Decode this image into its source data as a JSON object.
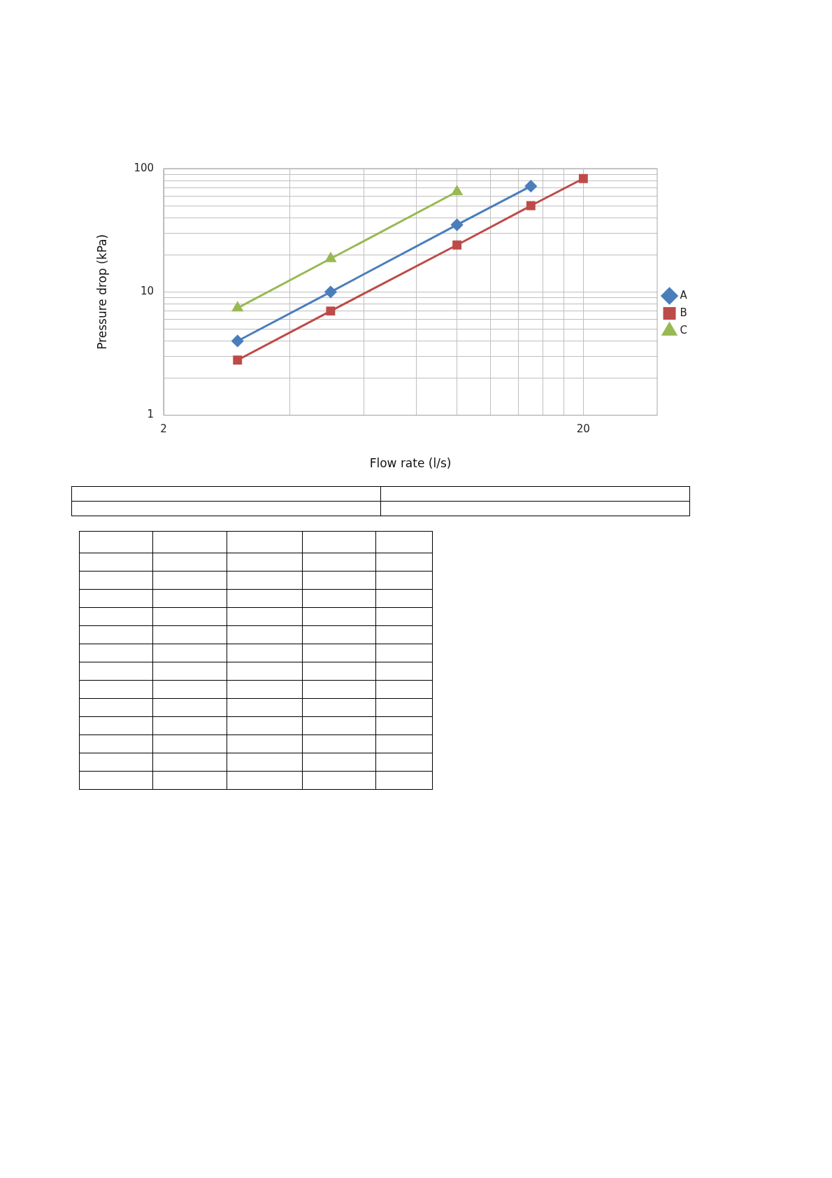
{
  "chart_data": {
    "type": "line",
    "xlabel": "Flow rate (l/s)",
    "ylabel": "Pressure drop (kPa)",
    "log": "xy",
    "grid": true,
    "legend": "right",
    "xlim": [
      2,
      30
    ],
    "xticks": [
      2,
      {
        "value": 4,
        "label": null
      },
      {
        "value": 6,
        "label": null
      },
      {
        "value": 8,
        "label": null
      },
      {
        "value": 10,
        "label": null
      },
      {
        "value": 12,
        "label": null
      },
      {
        "value": 14,
        "label": null
      },
      {
        "value": 16,
        "label": null
      },
      {
        "value": 18,
        "label": null
      },
      20
    ],
    "ylim": [
      1,
      100
    ],
    "yticks": [
      1,
      {
        "value": 2,
        "label": null
      },
      {
        "value": 3,
        "label": null
      },
      {
        "value": 4,
        "label": null
      },
      {
        "value": 5,
        "label": null
      },
      {
        "value": 6,
        "label": null
      },
      {
        "value": 7,
        "label": null
      },
      {
        "value": 8,
        "label": null
      },
      {
        "value": 9,
        "label": null
      },
      10,
      {
        "value": 20,
        "label": null
      },
      {
        "value": 30,
        "label": null
      },
      {
        "value": 40,
        "label": null
      },
      {
        "value": 50,
        "label": null
      },
      {
        "value": 60,
        "label": null
      },
      {
        "value": 70,
        "label": null
      },
      {
        "value": 80,
        "label": null
      },
      {
        "value": 90,
        "label": null
      },
      100
    ],
    "series": [
      {
        "name": "A",
        "color": "#4a7ebb",
        "marker": "diamond",
        "x": [
          3,
          5,
          10,
          15
        ],
        "values": [
          4,
          10,
          35,
          72
        ]
      },
      {
        "name": "B",
        "color": "#be4b48",
        "marker": "square",
        "x": [
          3,
          5,
          10,
          15,
          20
        ],
        "values": [
          2.8,
          7,
          24,
          50,
          83
        ]
      },
      {
        "name": "C",
        "color": "#98b954",
        "marker": "triangle",
        "x": [
          3,
          5,
          10
        ],
        "values": [
          7.4,
          18.6,
          65
        ]
      }
    ]
  }
}
